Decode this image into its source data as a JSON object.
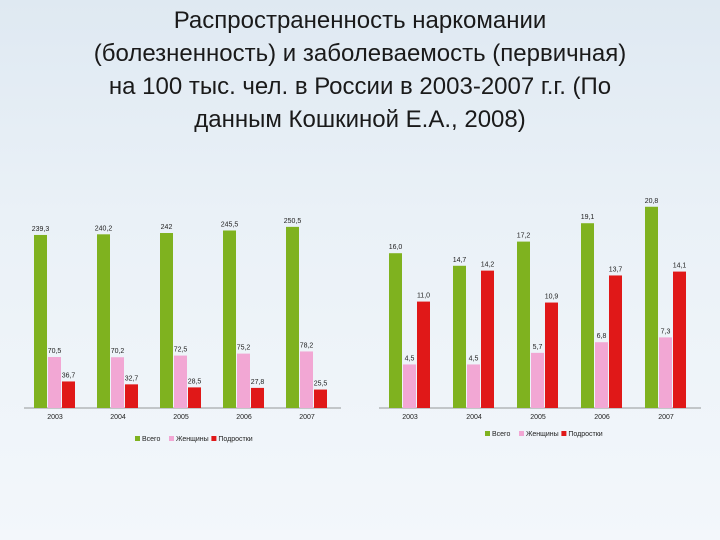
{
  "title": "Распространенность наркомании\n(болезненность) и заболеваемость (первичная)\nна 100 тыс. чел. в России в 2003-2007 г.г. (По\nданным Кошкиной Е.А., 2008)",
  "colors": {
    "all": "#7fb21f",
    "women": "#f2a7d4",
    "teens": "#e01818"
  },
  "chart_data": [
    {
      "type": "bar",
      "categories": [
        "2003",
        "2004",
        "2005",
        "2006",
        "2007"
      ],
      "series": [
        {
          "name": "Всего",
          "values": [
            239.3,
            240.2,
            242,
            245.5,
            250.5
          ],
          "labels": [
            "239,3",
            "240,2",
            "242",
            "245,5",
            "250,5"
          ]
        },
        {
          "name": "Женщины",
          "values": [
            70.5,
            70.2,
            72.5,
            75.2,
            78.2
          ],
          "labels": [
            "70,5",
            "70,2",
            "72,5",
            "75,2",
            "78,2"
          ]
        },
        {
          "name": "Подростки",
          "values": [
            36.7,
            32.7,
            28.5,
            27.8,
            25.5
          ],
          "labels": [
            "36,7",
            "32,7",
            "28,5",
            "27,8",
            "25,5"
          ]
        }
      ],
      "ylim": [
        0,
        260
      ]
    },
    {
      "type": "bar",
      "categories": [
        "2003",
        "2004",
        "2005",
        "2006",
        "2007"
      ],
      "series": [
        {
          "name": "Всего",
          "values": [
            16.0,
            14.7,
            17.2,
            19.1,
            20.8
          ],
          "labels": [
            "16,0",
            "14,7",
            "17,2",
            "19,1",
            "20,8"
          ]
        },
        {
          "name": "Женщины",
          "values": [
            4.5,
            4.5,
            5.7,
            6.8,
            7.3
          ],
          "labels": [
            "4,5",
            "4,5",
            "5,7",
            "6,8",
            "7,3"
          ]
        },
        {
          "name": "Подростки",
          "values": [
            11.0,
            14.2,
            10.9,
            13.7,
            14.1
          ],
          "labels": [
            "11,0",
            "14,2",
            "10,9",
            "13,7",
            "14,1"
          ]
        }
      ],
      "ylim": [
        0,
        21.5
      ]
    }
  ]
}
